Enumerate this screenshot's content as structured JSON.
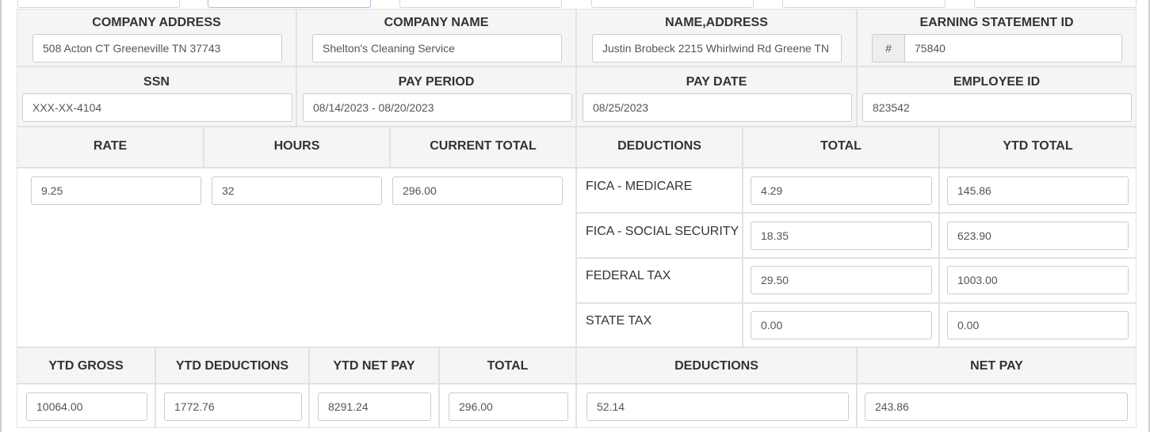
{
  "row1": {
    "company_address": {
      "label": "COMPANY ADDRESS",
      "value": "508 Acton CT Greeneville TN 37743"
    },
    "company_name": {
      "label": "COMPANY NAME",
      "value": "Shelton's Cleaning Service"
    },
    "name_address": {
      "label": "NAME,ADDRESS",
      "value": "Justin Brobeck 2215 Whirlwind Rd Greene TN"
    },
    "earning_statement_id": {
      "label": "EARNING STATEMENT ID",
      "prefix": "#",
      "value": "75840"
    }
  },
  "row2": {
    "ssn": {
      "label": "SSN",
      "value": "XXX-XX-4104"
    },
    "pay_period": {
      "label": "PAY PERIOD",
      "value": "08/14/2023 - 08/20/2023"
    },
    "pay_date": {
      "label": "PAY DATE",
      "value": "08/25/2023"
    },
    "employee_id": {
      "label": "EMPLOYEE ID",
      "value": "823542"
    }
  },
  "earnings": {
    "headers": {
      "rate": "RATE",
      "hours": "HOURS",
      "current_total": "CURRENT TOTAL"
    },
    "rate": "9.25",
    "hours": "32",
    "current_total": "296.00"
  },
  "deductions": {
    "headers": {
      "deductions": "DEDUCTIONS",
      "total": "TOTAL",
      "ytd_total": "YTD TOTAL"
    },
    "rows": [
      {
        "label": "FICA - MEDICARE",
        "total": "4.29",
        "ytd": "145.86"
      },
      {
        "label": "FICA - SOCIAL SECURITY",
        "total": "18.35",
        "ytd": "623.90"
      },
      {
        "label": "FEDERAL TAX",
        "total": "29.50",
        "ytd": "1003.00"
      },
      {
        "label": "STATE TAX",
        "total": "0.00",
        "ytd": "0.00"
      }
    ]
  },
  "summary": {
    "headers": {
      "ytd_gross": "YTD GROSS",
      "ytd_deductions": "YTD DEDUCTIONS",
      "ytd_net_pay": "YTD NET PAY",
      "total": "TOTAL",
      "deductions": "DEDUCTIONS",
      "net_pay": "NET PAY"
    },
    "ytd_gross": "10064.00",
    "ytd_deductions": "1772.76",
    "ytd_net_pay": "8291.24",
    "total": "296.00",
    "deductions": "52.14",
    "net_pay": "243.86"
  }
}
